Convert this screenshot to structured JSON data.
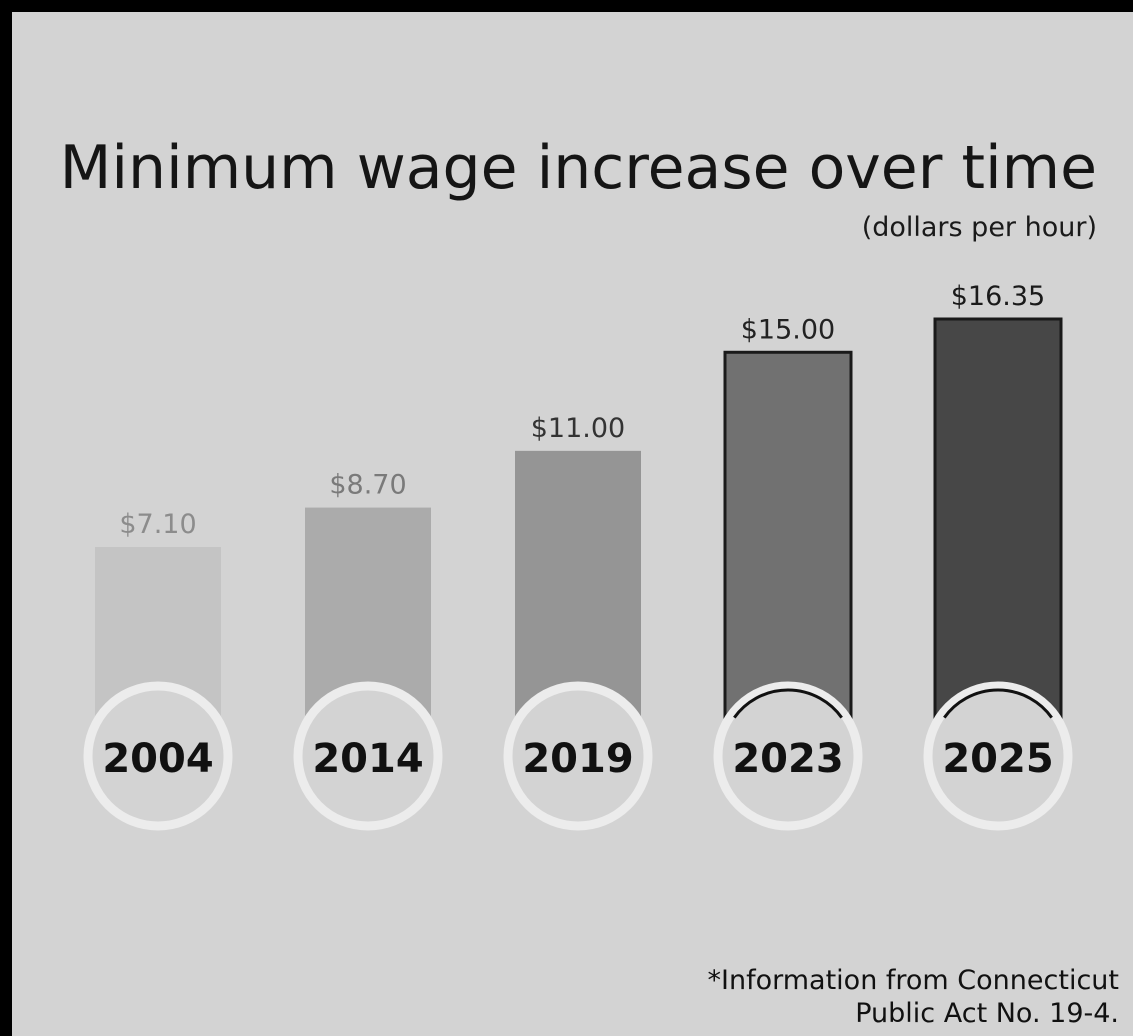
{
  "chart_data": {
    "type": "bar",
    "title": "Minimum wage increase over time",
    "subtitle": "(dollars per hour)",
    "categories": [
      "2004",
      "2014",
      "2019",
      "2023",
      "2025"
    ],
    "values": [
      7.1,
      8.7,
      11.0,
      15.0,
      16.35
    ],
    "value_labels": [
      "$7.10",
      "$8.70",
      "$11.00",
      "$15.00",
      "$16.35"
    ],
    "bar_colors": [
      "#c4c4c4",
      "#ababab",
      "#959595",
      "#717171",
      "#474747"
    ],
    "label_colors": [
      "#8c8c8c",
      "#7a7a7a",
      "#333333",
      "#222222",
      "#1a1a1a"
    ],
    "footnote_lines": [
      "*Information from Connecticut",
      "Public Act No. 19-4."
    ]
  }
}
